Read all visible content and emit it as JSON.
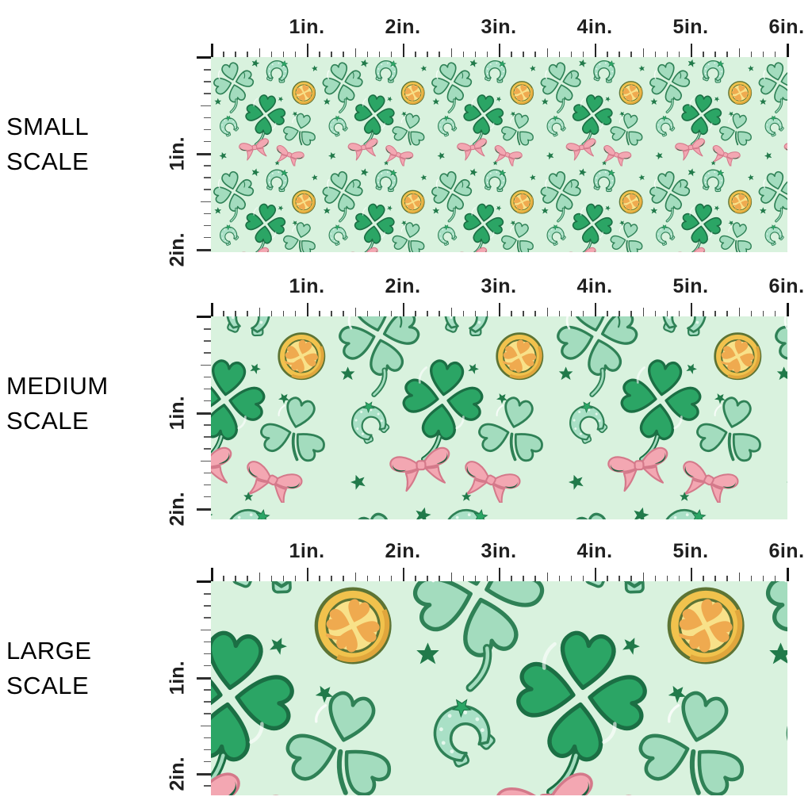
{
  "sections": [
    {
      "name": "small-scale",
      "label_line1": "SMALL",
      "label_line2": "SCALE"
    },
    {
      "name": "medium-scale",
      "label_line1": "MEDIUM",
      "label_line2": "SCALE"
    },
    {
      "name": "large-scale",
      "label_line1": "LARGE",
      "label_line2": "SCALE"
    }
  ],
  "ruler": {
    "horizontal_labels": [
      "1in.",
      "2in.",
      "3in.",
      "4in.",
      "5in.",
      "6in."
    ],
    "vertical_labels": [
      "1in.",
      "2in."
    ],
    "inches_shown_horizontal": 6,
    "inches_shown_vertical": 2
  },
  "fabric": {
    "theme": "St. Patrick's Day fabric pattern with green four-leaf clovers, seafoam shamrocks, pink bows, gold coins, horseshoes and dark green stars on a mint background",
    "motifs": [
      "four-leaf-clover",
      "shamrock",
      "pink-bow",
      "gold-coin",
      "horseshoe",
      "star"
    ],
    "scales": [
      {
        "name": "small",
        "pattern_scale": 0.55
      },
      {
        "name": "medium",
        "pattern_scale": 1.1
      },
      {
        "name": "large",
        "pattern_scale": 1.78
      }
    ],
    "colors": {
      "background": "#d9f2de",
      "clover_green": "#2ba565",
      "clover_outline": "#1b6f44",
      "seafoam": "#a3dcbe",
      "seafoam_outline": "#2f8156",
      "bow_pink": "#f3a7b2",
      "bow_outline": "#d4798a",
      "bow_dark_green": "#1e6240",
      "coin_gold": "#f1c24d",
      "coin_face": "#f8e189",
      "coin_clover_orange": "#efaa4f",
      "coin_outline": "#5d7434",
      "horseshoe_fill": "#a9e0c6",
      "star_green": "#217a4a"
    }
  }
}
